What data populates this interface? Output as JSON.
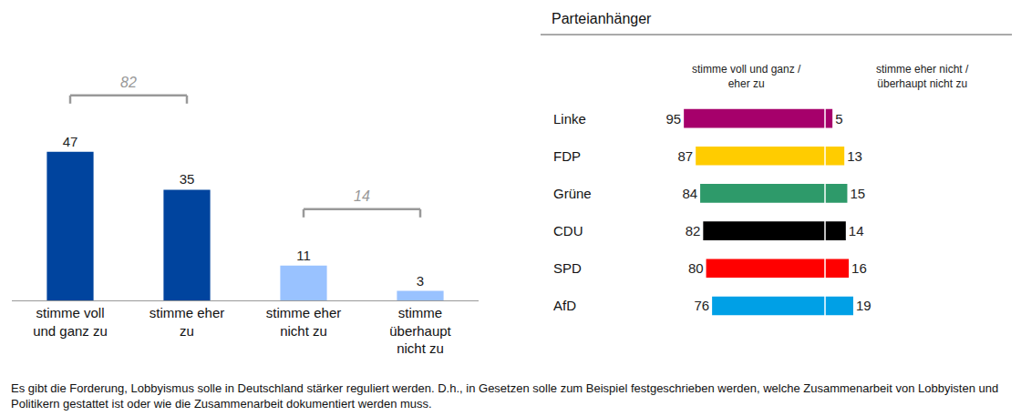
{
  "chart_data": [
    {
      "type": "bar",
      "categories": [
        "stimme voll und ganz zu",
        "stimme eher zu",
        "stimme eher nicht zu",
        "stimme überhaupt nicht zu"
      ],
      "values": [
        47,
        35,
        11,
        3
      ],
      "colors": [
        "#00449e",
        "#00449e",
        "#99c2ff",
        "#99c2ff"
      ],
      "ylim": [
        0,
        55
      ],
      "yticks": [],
      "grid": false,
      "data_labels": true,
      "tick_labels": "x",
      "annotations": [
        {
          "value": 82,
          "categories": [
            "stimme voll und ganz zu",
            "stimme eher zu"
          ]
        },
        {
          "value": 14,
          "categories": [
            "stimme eher nicht zu",
            "stimme überhaupt nicht zu"
          ]
        }
      ]
    },
    {
      "type": "bar",
      "orientation": "horizontal",
      "title": "Parteianhänger",
      "categories": [
        "Linke",
        "FDP",
        "Grüne",
        "CDU",
        "SPD",
        "AfD"
      ],
      "colors": [
        "#a6006b",
        "#ffcc00",
        "#2e9a6a",
        "#000000",
        "#ff0000",
        "#00a0e6"
      ],
      "series": [
        {
          "name": "stimme voll und ganz / eher zu",
          "values": [
            95,
            87,
            84,
            82,
            80,
            76
          ]
        },
        {
          "name": "stimme eher nicht / überhaupt nicht zu",
          "values": [
            5,
            13,
            15,
            14,
            16,
            19
          ]
        }
      ],
      "xlim": [
        0,
        100
      ],
      "xticks": [],
      "grid": false,
      "data_labels": true
    }
  ],
  "note": "Es gibt die Forderung, Lobbyismus solle in Deutschland stärker reguliert werden. D.h., in Gesetzen solle zum Beispiel festgeschrieben werden, welche Zusammenarbeit von Lobbyisten und Politikern gestattet ist oder wie die Zusammenarbeit dokumentiert werden muss."
}
